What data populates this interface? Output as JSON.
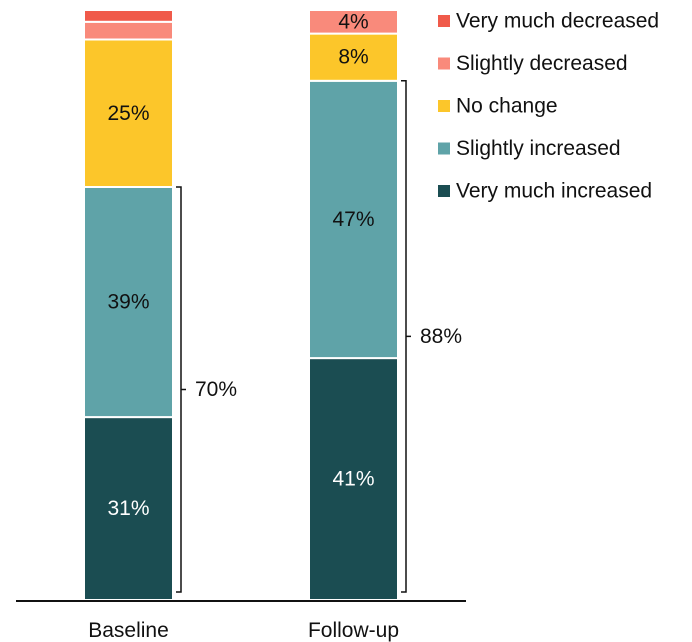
{
  "chart_data": {
    "type": "bar",
    "stacked": true,
    "categories": [
      "Baseline",
      "Follow-up"
    ],
    "ylim": [
      0,
      100
    ],
    "grid": false,
    "legend_position": "top-right",
    "series": [
      {
        "name": "Very much increased",
        "color": "#1b4d52",
        "label_color": "#ffffff",
        "values": [
          31,
          41
        ],
        "labels": [
          "31%",
          "41%"
        ]
      },
      {
        "name": "Slightly increased",
        "color": "#5fa3a8",
        "label_color": "#111111",
        "values": [
          39,
          47
        ],
        "labels": [
          "39%",
          "47%"
        ]
      },
      {
        "name": "No change",
        "color": "#fcc62a",
        "label_color": "#111111",
        "values": [
          25,
          8
        ],
        "labels": [
          "25%",
          "8%"
        ]
      },
      {
        "name": "Slightly decreased",
        "color": "#f98a7b",
        "label_color": "#111111",
        "values": [
          3,
          4
        ],
        "labels": [
          "",
          "4%"
        ]
      },
      {
        "name": "Very much decreased",
        "color": "#f05a4a",
        "label_color": "#111111",
        "values": [
          2,
          0
        ],
        "labels": [
          "",
          ""
        ]
      }
    ],
    "brackets": [
      {
        "category": "Baseline",
        "from": 0,
        "to": 70,
        "label": "70%"
      },
      {
        "category": "Follow-up",
        "from": 0,
        "to": 88,
        "label": "88%"
      }
    ]
  }
}
